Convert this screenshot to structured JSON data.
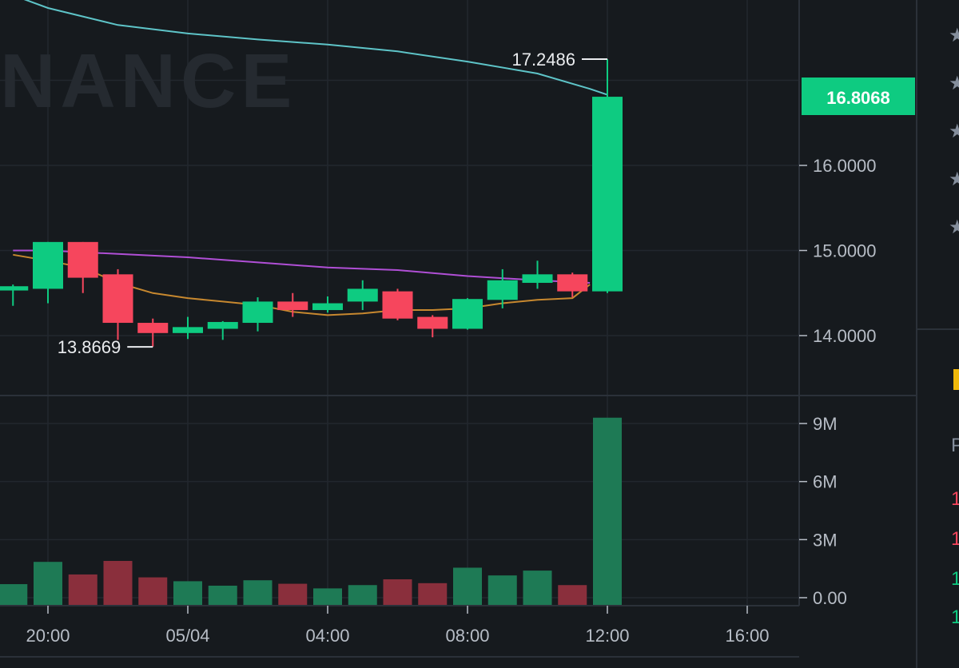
{
  "watermark": "NANCE",
  "last_price_label": "16.8068",
  "colors": {
    "background": "#161a1e",
    "grid": "#22272e",
    "up": "#0ecb81",
    "down": "#f6465d",
    "vol_up": "#1e7a55",
    "vol_down": "#8a2f3c",
    "ma_cyan": "#5ec4c8",
    "ma_purple": "#b04fd6",
    "ma_orange": "#c7882f",
    "axis_text": "#b7bdc6",
    "annotation": "#eaecef",
    "star": "#848e9c",
    "side_yellow": "#f0b90b"
  },
  "sidebar": {
    "stars": [
      "★",
      "★",
      "★",
      "★",
      "★"
    ],
    "fragments": [
      {
        "text": "P",
        "color": "#848e9c"
      },
      {
        "text": "1",
        "color": "#f6465d"
      },
      {
        "text": "1",
        "color": "#f6465d"
      },
      {
        "text": "1",
        "color": "#0ecb81"
      },
      {
        "text": "1",
        "color": "#0ecb81"
      }
    ]
  },
  "chart_data": {
    "type": "candlestick",
    "x_labels": [
      "20:00",
      "05/04",
      "04:00",
      "08:00",
      "12:00",
      "16:00"
    ],
    "x_label_hours": [
      0,
      4,
      8,
      12,
      16,
      20
    ],
    "price_axis": {
      "ticks": [
        "16.0000",
        "15.0000",
        "14.0000"
      ],
      "tick_values": [
        16,
        15,
        14
      ],
      "range": [
        13.3,
        17.8
      ]
    },
    "volume_axis": {
      "ticks": [
        "9M",
        "6M",
        "3M",
        "0.00"
      ],
      "tick_values": [
        9000000,
        6000000,
        3000000,
        0
      ],
      "range": [
        0,
        9500000
      ]
    },
    "annotations": {
      "high": "17.2486",
      "low": "13.8669"
    },
    "high_value": 17.2486,
    "low_value": 13.8669,
    "high_index": 17,
    "low_index": 4,
    "last_price": 16.8068,
    "candles": [
      {
        "hour": -1,
        "o": 14.53,
        "h": 14.6,
        "l": 14.35,
        "c": 14.58,
        "v": 700000
      },
      {
        "hour": 0,
        "o": 14.55,
        "h": 15.1,
        "l": 14.38,
        "c": 15.1,
        "v": 1850000
      },
      {
        "hour": 1,
        "o": 15.1,
        "h": 15.1,
        "l": 14.5,
        "c": 14.68,
        "v": 1200000
      },
      {
        "hour": 2,
        "o": 14.72,
        "h": 14.78,
        "l": 13.95,
        "c": 14.15,
        "v": 1900000
      },
      {
        "hour": 3,
        "o": 14.15,
        "h": 14.2,
        "l": 13.87,
        "c": 14.03,
        "v": 1050000
      },
      {
        "hour": 4,
        "o": 14.03,
        "h": 14.22,
        "l": 13.96,
        "c": 14.1,
        "v": 850000
      },
      {
        "hour": 5,
        "o": 14.08,
        "h": 14.17,
        "l": 13.95,
        "c": 14.16,
        "v": 620000
      },
      {
        "hour": 6,
        "o": 14.15,
        "h": 14.45,
        "l": 14.05,
        "c": 14.4,
        "v": 900000
      },
      {
        "hour": 7,
        "o": 14.4,
        "h": 14.5,
        "l": 14.22,
        "c": 14.3,
        "v": 720000
      },
      {
        "hour": 8,
        "o": 14.3,
        "h": 14.46,
        "l": 14.27,
        "c": 14.38,
        "v": 480000
      },
      {
        "hour": 9,
        "o": 14.4,
        "h": 14.65,
        "l": 14.3,
        "c": 14.55,
        "v": 650000
      },
      {
        "hour": 10,
        "o": 14.52,
        "h": 14.55,
        "l": 14.18,
        "c": 14.2,
        "v": 950000
      },
      {
        "hour": 11,
        "o": 14.22,
        "h": 14.24,
        "l": 13.98,
        "c": 14.08,
        "v": 750000
      },
      {
        "hour": 12,
        "o": 14.08,
        "h": 14.44,
        "l": 14.07,
        "c": 14.43,
        "v": 1550000
      },
      {
        "hour": 13,
        "o": 14.42,
        "h": 14.78,
        "l": 14.32,
        "c": 14.65,
        "v": 1150000
      },
      {
        "hour": 14,
        "o": 14.62,
        "h": 14.88,
        "l": 14.55,
        "c": 14.72,
        "v": 1400000
      },
      {
        "hour": 15,
        "o": 14.72,
        "h": 14.74,
        "l": 14.45,
        "c": 14.52,
        "v": 650000
      },
      {
        "hour": 16,
        "o": 14.52,
        "h": 17.2486,
        "l": 14.5,
        "c": 16.8068,
        "v": 9300000
      }
    ],
    "moving_averages": [
      {
        "color_key": "ma_cyan",
        "hours": [
          -1,
          0,
          2,
          4,
          6,
          8,
          10,
          12,
          14,
          15.5,
          16
        ],
        "values": [
          18.0,
          17.85,
          17.65,
          17.55,
          17.48,
          17.42,
          17.34,
          17.22,
          17.08,
          16.9,
          16.83
        ]
      },
      {
        "color_key": "ma_purple",
        "hours": [
          -1,
          0,
          1,
          2,
          4,
          6,
          8,
          10,
          12,
          14,
          15.5
        ],
        "values": [
          15.0,
          15.0,
          14.98,
          14.96,
          14.92,
          14.86,
          14.8,
          14.77,
          14.7,
          14.65,
          14.62
        ]
      },
      {
        "color_key": "ma_orange",
        "hours": [
          -1,
          0,
          1,
          2,
          3,
          4,
          5,
          6,
          7,
          8,
          9,
          10,
          11,
          12,
          13,
          14,
          15,
          15.5
        ],
        "values": [
          14.95,
          14.88,
          14.8,
          14.62,
          14.5,
          14.44,
          14.4,
          14.36,
          14.28,
          14.24,
          14.26,
          14.3,
          14.3,
          14.32,
          14.38,
          14.42,
          14.44,
          14.6
        ]
      }
    ]
  }
}
